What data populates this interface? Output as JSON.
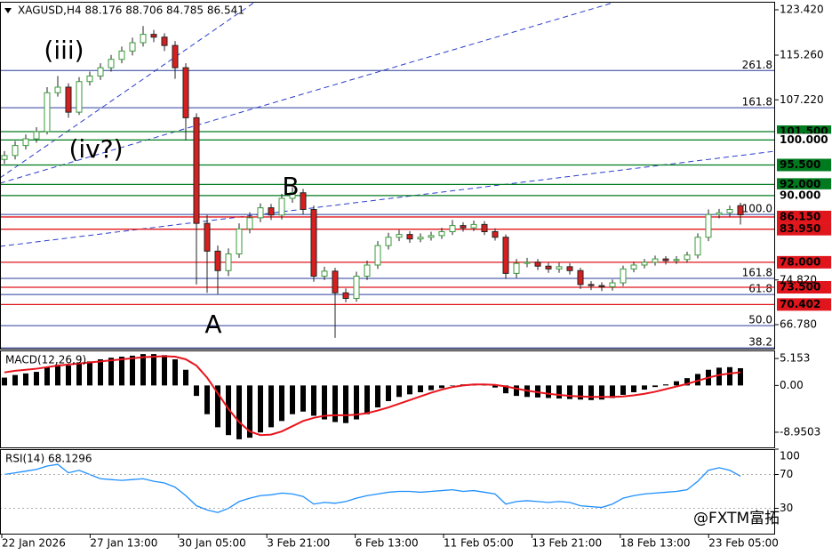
{
  "chart_data": [
    {
      "type": "candlestick",
      "title": "XAGUSD,H4 88.176 88.706 84.785 86.541",
      "up_color": "#3a9a3a",
      "down_color": "#d62020",
      "open": [
        96.5,
        97.2,
        99,
        100.2,
        101.5,
        108.5,
        109.5,
        105,
        110.5,
        111.5,
        113,
        114.5,
        116,
        117.5,
        119,
        118.5,
        117,
        113,
        104,
        85,
        80,
        76.5,
        79.5,
        84,
        86,
        87.8,
        86.5,
        89.5,
        90.5,
        87.5,
        75.5,
        76.4,
        72.5,
        71.5,
        75.5,
        77.5,
        81,
        82.5,
        83,
        82.2,
        82.5,
        82.8,
        83.5,
        84.6,
        84.2,
        84.8,
        83.5,
        82.5,
        76,
        77.8,
        78,
        77.3,
        76.8,
        77.2,
        76.5,
        74,
        73.8,
        73.6,
        74.3,
        76.8,
        77.5,
        78,
        78.6,
        78.3,
        78.5,
        79.3,
        82.5,
        86.6,
        86.9,
        88.176
      ],
      "high": [
        98,
        99.8,
        101,
        102.3,
        109.5,
        111.5,
        110.2,
        111.3,
        112.3,
        113.8,
        115.3,
        116.8,
        118.4,
        120.5,
        119.8,
        119.2,
        117.8,
        113.8,
        104.8,
        86.5,
        81,
        80.5,
        85,
        87,
        88.6,
        88.5,
        90.3,
        91.5,
        91.2,
        88.2,
        77.2,
        77,
        73.3,
        76.3,
        78.3,
        81.8,
        83.3,
        83.8,
        83.6,
        83.2,
        83.5,
        84.2,
        85.6,
        85.2,
        85.5,
        85.4,
        84.1,
        83,
        78.6,
        78.8,
        78.6,
        77.9,
        77.9,
        77.8,
        77,
        74.6,
        74.4,
        74.9,
        77.4,
        78.1,
        78.6,
        79.2,
        79.1,
        79.1,
        79.9,
        83.2,
        87.5,
        87.6,
        88.2,
        88.706
      ],
      "low": [
        95.7,
        96.5,
        98.3,
        99.5,
        101,
        107.8,
        104,
        104.5,
        109.8,
        110.8,
        112.3,
        113.8,
        115.2,
        116.8,
        117.6,
        116,
        111,
        100,
        74,
        72.5,
        72.3,
        75.5,
        78.8,
        83.2,
        85.2,
        85.6,
        85.7,
        88.7,
        86.6,
        74.5,
        74.8,
        64.4,
        70.8,
        70.9,
        74.8,
        76.8,
        80.3,
        81.8,
        81.5,
        81.6,
        81.9,
        82.2,
        82.9,
        83.5,
        83.6,
        82.9,
        81.9,
        75,
        75.2,
        77.1,
        76.6,
        76.1,
        76.1,
        75.8,
        73.2,
        73,
        72.8,
        72.9,
        73.7,
        76.2,
        76.9,
        77.4,
        77.6,
        77.7,
        77.9,
        78.7,
        81.8,
        85.9,
        86.2,
        84.785
      ],
      "close": [
        97.2,
        99,
        100.2,
        101.5,
        108.5,
        109.5,
        105,
        110.5,
        111.5,
        113,
        114.5,
        116,
        117.5,
        119,
        118.5,
        117,
        113,
        104,
        85,
        80,
        76.5,
        79.5,
        84,
        86,
        87.8,
        86.5,
        89.5,
        90.5,
        87.5,
        75.5,
        76.4,
        72.5,
        71.5,
        75.5,
        77.5,
        81,
        82.5,
        83,
        82.2,
        82.5,
        82.8,
        83.5,
        84.6,
        84.2,
        84.8,
        83.5,
        82.5,
        76,
        77.8,
        78,
        77.3,
        76.8,
        77.2,
        76.5,
        74,
        73.8,
        73.6,
        74.3,
        76.8,
        77.5,
        78,
        78.6,
        78.3,
        78.5,
        79.3,
        82.5,
        86.6,
        86.9,
        87.5,
        86.541
      ],
      "ylim": [
        62.46,
        124.86
      ],
      "yticks": [
        {
          "value": 123.42,
          "label": "123.420"
        },
        {
          "value": 115.26,
          "label": "115.260"
        },
        {
          "value": 107.22,
          "label": "107.220"
        },
        {
          "value": 74.82,
          "label": "74.820"
        },
        {
          "value": 66.78,
          "label": "66.780"
        }
      ],
      "levels": [
        {
          "value": 101.5,
          "label": "101.500",
          "color": "#007a1e",
          "boxed": true
        },
        {
          "value": 100,
          "label": "100.000",
          "color": "#007a1e",
          "boxed": false
        },
        {
          "value": 95.5,
          "label": "95.500",
          "color": "#007a1e",
          "boxed": true
        },
        {
          "value": 92,
          "label": "92.000",
          "color": "#007a1e",
          "boxed": true
        },
        {
          "value": 90,
          "label": "90.000",
          "color": "#007a1e",
          "boxed": false
        },
        {
          "value": 86.15,
          "label": "86.150",
          "color": "#e0161c",
          "boxed": true
        },
        {
          "value": 83.95,
          "label": "83.950",
          "color": "#e0161c",
          "boxed": true
        },
        {
          "value": 78,
          "label": "78.000",
          "color": "#e0161c",
          "boxed": true
        },
        {
          "value": 73.5,
          "label": "73.500",
          "color": "#e0161c",
          "boxed": true
        },
        {
          "value": 70.402,
          "label": "70.402",
          "color": "#e0161c",
          "boxed": true
        }
      ],
      "fib_levels": [
        {
          "label": "261.8",
          "price": 112.5
        },
        {
          "label": "161.8",
          "price": 105.8
        },
        {
          "label": "100.0",
          "price": 86.6
        },
        {
          "label": "161.8",
          "price": 75.1
        },
        {
          "label": "61.8",
          "price": 72.2
        },
        {
          "label": "50.0",
          "price": 66.6
        },
        {
          "label": "38.2",
          "price": 62.6
        }
      ],
      "fib_color": "#2a3d9c",
      "annotations": [
        "(iii)",
        "(iv?)",
        "B",
        "A"
      ],
      "x_labels": [
        "22 Jan 2026",
        "27 Jan 13:00",
        "30 Jan 05:00",
        "3 Feb 21:00",
        "6 Feb 13:00",
        "11 Feb 05:00",
        "13 Feb 21:00",
        "18 Feb 13:00",
        "23 Feb 05:00"
      ],
      "watermark": "@FXTM富拓"
    },
    {
      "type": "macd",
      "title": "MACD(12,26,9)",
      "histogram": {
        "color": "#000000",
        "values": [
          1.5,
          2,
          2.3,
          2.6,
          3.5,
          4,
          3.8,
          4.3,
          4.6,
          5,
          5.3,
          5.5,
          5.7,
          6,
          6,
          5.8,
          5,
          3,
          -2,
          -5.5,
          -8,
          -9.5,
          -10.3,
          -10,
          -9,
          -8,
          -6.8,
          -5.5,
          -5,
          -5.8,
          -6.5,
          -7,
          -7.2,
          -6.5,
          -5.5,
          -4.2,
          -3,
          -2.2,
          -1.7,
          -1.3,
          -0.9,
          -0.5,
          0,
          0.2,
          0.3,
          0.1,
          -0.4,
          -1.5,
          -2,
          -2.2,
          -2.3,
          -2.4,
          -2.5,
          -2.6,
          -2.7,
          -2.8,
          -2.7,
          -2.4,
          -1.8,
          -1.3,
          -0.8,
          -0.3,
          0.2,
          0.8,
          1.4,
          2.2,
          3,
          3.4,
          3.5,
          3.3
        ]
      },
      "signal": {
        "color": "#e8141c",
        "values": [
          2.5,
          2.8,
          3,
          3.2,
          3.5,
          3.8,
          4,
          4.2,
          4.4,
          4.6,
          4.8,
          5,
          5.2,
          5.4,
          5.5,
          5.6,
          5.5,
          5,
          3.8,
          1.5,
          -1.5,
          -4.5,
          -7,
          -8.8,
          -9.5,
          -9.4,
          -8.8,
          -7.8,
          -6.8,
          -6.2,
          -5.8,
          -5.7,
          -5.7,
          -5.6,
          -5.3,
          -4.8,
          -4.2,
          -3.5,
          -2.8,
          -2.1,
          -1.4,
          -0.8,
          -0.3,
          0,
          0.2,
          0.2,
          0.1,
          -0.2,
          -0.6,
          -1,
          -1.3,
          -1.6,
          -1.8,
          -2,
          -2.1,
          -2.2,
          -2.2,
          -2.2,
          -2.1,
          -1.9,
          -1.6,
          -1.2,
          -0.7,
          -0.2,
          0.3,
          0.9,
          1.5,
          2,
          2.3,
          2.5
        ]
      },
      "ylim": [
        -11.85,
        6.7
      ],
      "yticks": [
        {
          "value": 5.153,
          "label": "5.153"
        },
        {
          "value": 0,
          "label": "0.00"
        },
        {
          "value": -8.9503,
          "label": "-8.9503"
        }
      ]
    },
    {
      "type": "line",
      "title": "RSI(14) 68.1296",
      "color": "#1e8fff",
      "values": [
        70,
        72,
        74,
        76,
        80,
        82,
        72,
        75,
        70,
        65,
        64,
        63,
        64,
        65,
        62,
        60,
        55,
        45,
        33,
        28,
        25,
        30,
        38,
        42,
        45,
        46,
        48,
        47,
        44,
        35,
        37,
        36,
        38,
        42,
        45,
        47,
        49,
        50,
        50,
        49,
        50,
        51,
        52,
        50,
        51,
        49,
        47,
        35,
        38,
        39,
        38,
        37,
        38,
        37,
        33,
        32,
        31,
        35,
        42,
        45,
        47,
        48,
        49,
        50,
        52,
        62,
        75,
        78,
        75,
        68.1296
      ],
      "ylim": [
        0,
        100
      ],
      "yticks": [
        100,
        70,
        30
      ]
    }
  ]
}
